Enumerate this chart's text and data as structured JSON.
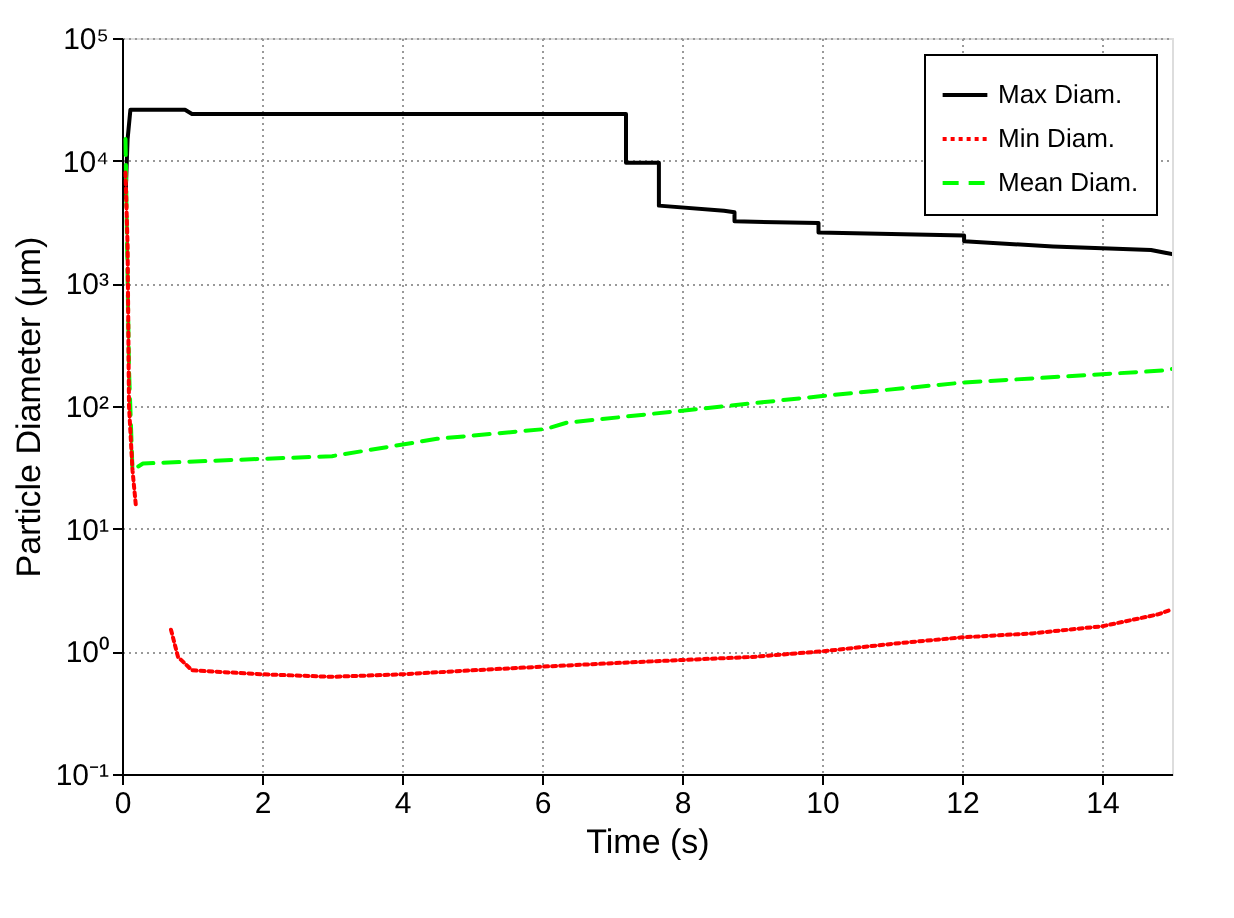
{
  "chart_data": {
    "type": "line",
    "xlabel": "Time (s)",
    "ylabel": "Particle Diameter (μm)",
    "log": "y",
    "grid": true,
    "legend": "top right",
    "xlim": [
      0,
      15
    ],
    "xticks": [
      0,
      2,
      4,
      6,
      8,
      10,
      12,
      14
    ],
    "ylim": [
      0.1,
      100000
    ],
    "yticks": [
      {
        "value": 0.1,
        "label": "10⁻¹"
      },
      {
        "value": 1,
        "label": "10⁰"
      },
      {
        "value": 10,
        "label": "10¹"
      },
      {
        "value": 100,
        "label": "10²"
      },
      {
        "value": 1000,
        "label": "10³"
      },
      {
        "value": 10000,
        "label": "10⁴"
      },
      {
        "value": 100000,
        "label": "10⁵"
      }
    ],
    "series": [
      {
        "name": "Max Diam.",
        "color": "#000000",
        "line_style": "solid",
        "x": [
          0.05,
          0.08,
          0.12,
          0.9,
          1.0,
          7.2,
          7.2,
          7.67,
          7.67,
          8.6,
          8.75,
          8.75,
          9.95,
          9.95,
          12.03,
          12.03,
          13.3,
          14.7,
          15
        ],
        "values": [
          5000,
          15000,
          26000,
          26000,
          24000,
          24000,
          9600,
          9600,
          4300,
          3900,
          3800,
          3200,
          3100,
          2600,
          2450,
          2200,
          2000,
          1870,
          1730
        ]
      },
      {
        "name": "Min Diam.",
        "color": "#ff0000",
        "line_style": "dotted",
        "x": [
          0.05,
          0.08,
          0.1,
          0.15,
          0.2,
          null,
          0.7,
          0.8,
          1,
          2,
          3,
          4,
          5,
          6,
          7,
          8,
          9,
          10,
          11,
          12,
          13,
          14,
          14.8,
          15
        ],
        "values": [
          8000,
          2000,
          100,
          30,
          15,
          null,
          1.5,
          0.9,
          0.7,
          0.65,
          0.62,
          0.65,
          0.7,
          0.75,
          0.8,
          0.85,
          0.9,
          1.0,
          1.15,
          1.3,
          1.4,
          1.6,
          2.0,
          2.2
        ]
      },
      {
        "name": "Mean Diam.",
        "color": "#00ff00",
        "line_style": "dashed",
        "x": [
          0.05,
          0.1,
          0.15,
          0.3,
          3.0,
          4.5,
          6.06,
          6.35,
          9.97,
          12.0,
          14.9,
          15
        ],
        "values": [
          15000,
          200,
          30,
          34,
          39,
          54,
          65,
          73,
          120,
          155,
          195,
          200
        ]
      }
    ]
  }
}
